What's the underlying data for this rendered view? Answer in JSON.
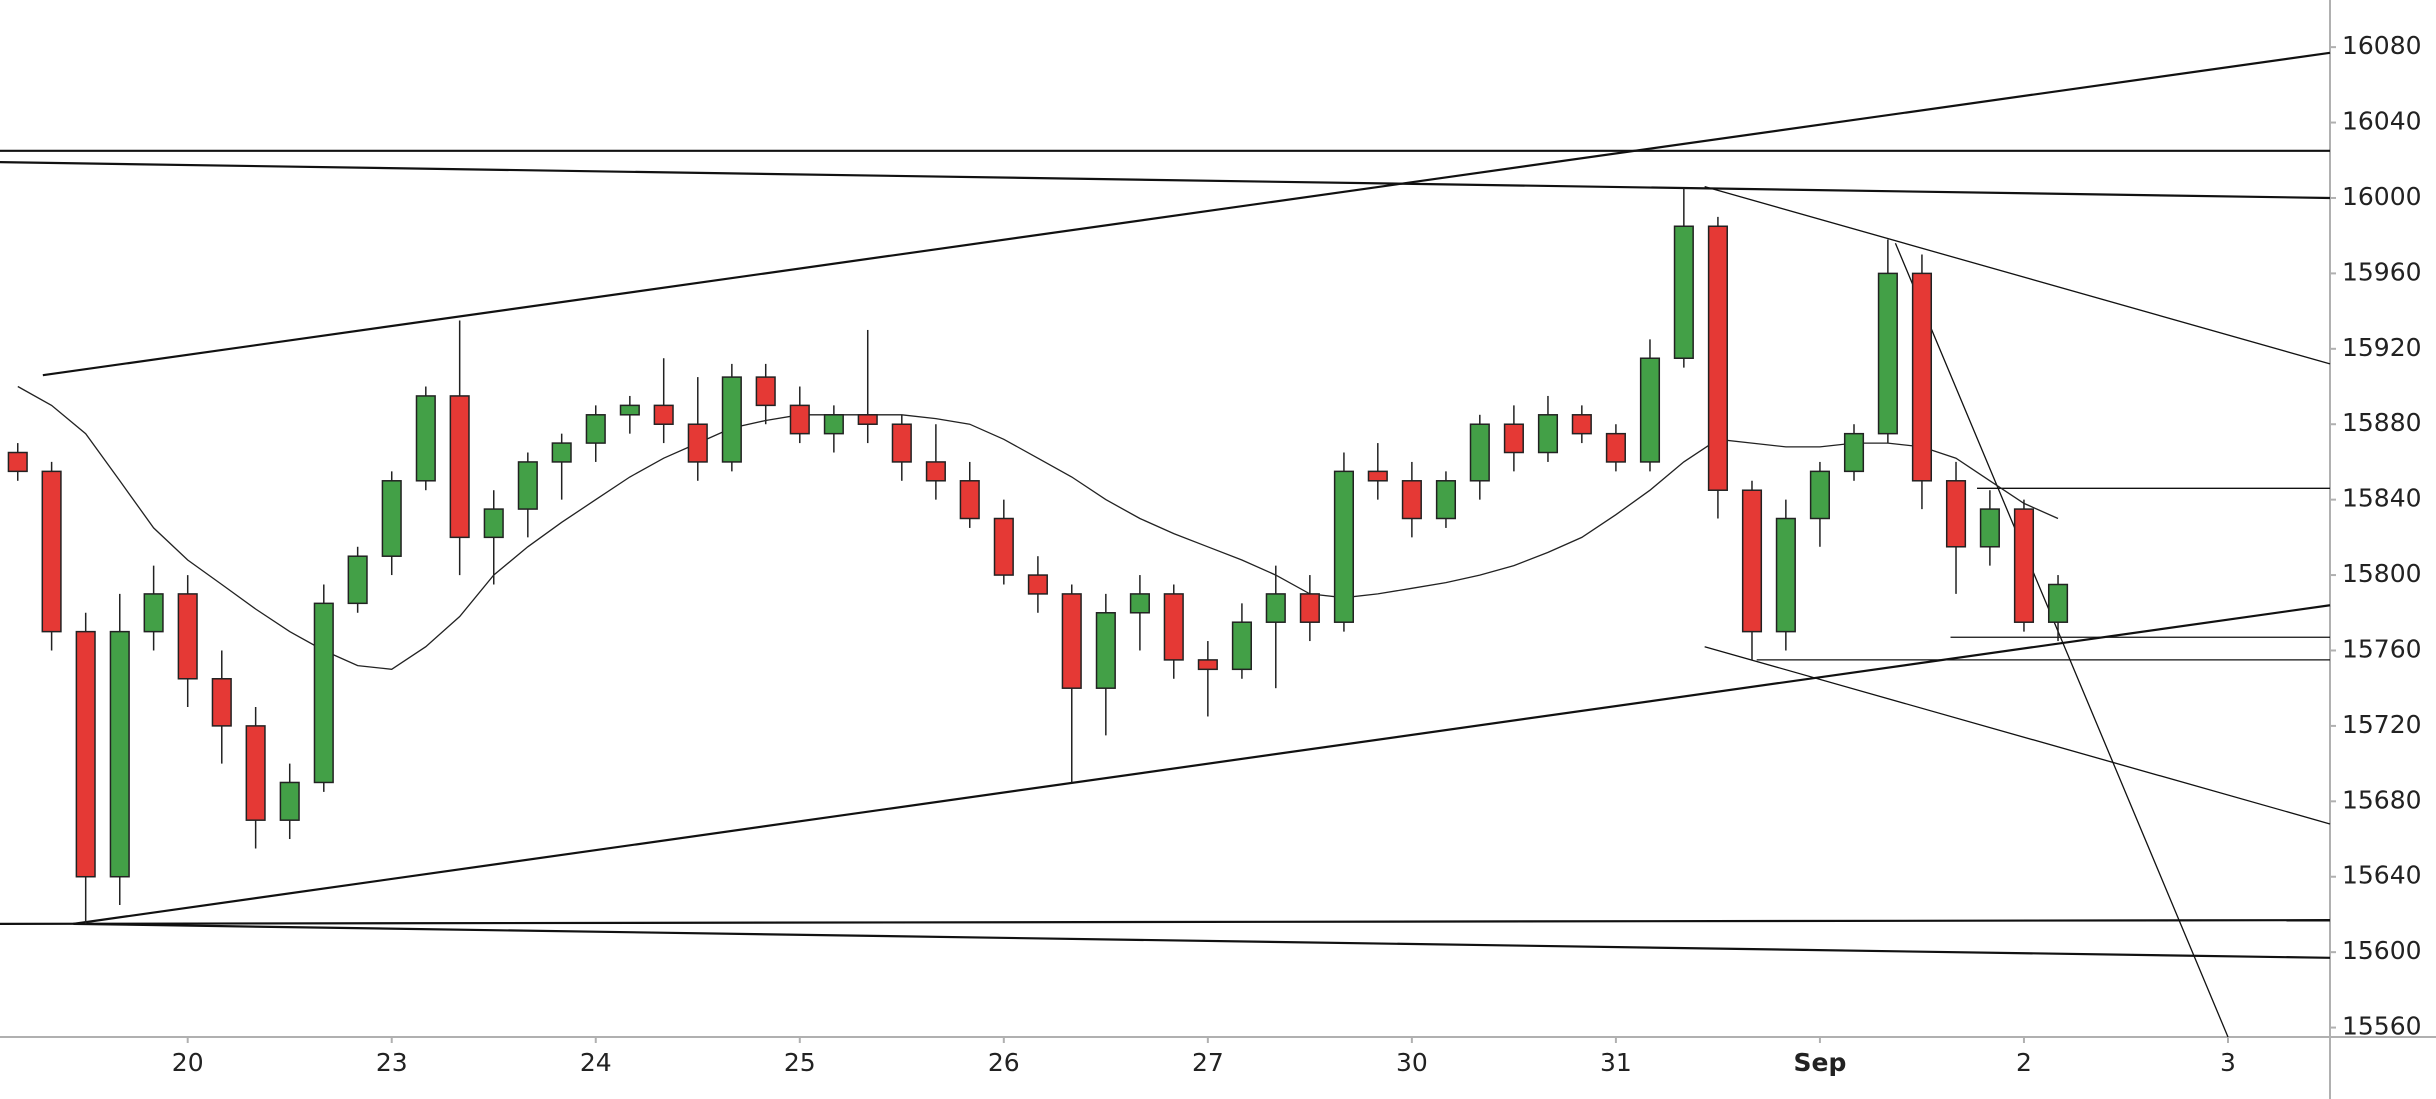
{
  "chart_data": {
    "type": "candlestick",
    "x": [
      0.167,
      0.333,
      0.5,
      0.667,
      0.833,
      1,
      1.167,
      1.333,
      1.5,
      1.667,
      1.833,
      2,
      2.167,
      2.333,
      2.5,
      2.667,
      2.833,
      3,
      3.167,
      3.333,
      3.5,
      3.667,
      3.833,
      4,
      4.167,
      4.333,
      4.5,
      4.667,
      4.833,
      5,
      5.167,
      5.333,
      5.5,
      5.667,
      5.833,
      6,
      6.167,
      6.333,
      6.5,
      6.667,
      6.833,
      7,
      7.167,
      7.333,
      7.5,
      7.667,
      7.833,
      8,
      8.167,
      8.333,
      8.5,
      8.667,
      8.833,
      9,
      9.167,
      9.333,
      9.5,
      9.667,
      9.833,
      10,
      10.167
    ],
    "open": [
      15865,
      15855,
      15770,
      15640,
      15770,
      15790,
      15745,
      15720,
      15670,
      15690,
      15785,
      15810,
      15850,
      15895,
      15820,
      15835,
      15860,
      15870,
      15885,
      15890,
      15880,
      15860,
      15905,
      15890,
      15875,
      15885,
      15880,
      15860,
      15850,
      15830,
      15800,
      15790,
      15740,
      15780,
      15790,
      15755,
      15750,
      15775,
      15790,
      15775,
      15855,
      15850,
      15830,
      15850,
      15880,
      15865,
      15885,
      15875,
      15860,
      15915,
      15985,
      15845,
      15770,
      15830,
      15855,
      15875,
      15960,
      15850,
      15815,
      15835,
      15775
    ],
    "high": [
      15870,
      15860,
      15780,
      15790,
      15805,
      15800,
      15760,
      15730,
      15700,
      15795,
      15815,
      15855,
      15900,
      15935,
      15845,
      15865,
      15875,
      15890,
      15895,
      15915,
      15905,
      15912,
      15912,
      15900,
      15890,
      15930,
      15885,
      15880,
      15860,
      15840,
      15810,
      15795,
      15790,
      15800,
      15795,
      15765,
      15785,
      15805,
      15800,
      15865,
      15870,
      15860,
      15855,
      15885,
      15890,
      15895,
      15890,
      15880,
      15925,
      16005,
      15990,
      15850,
      15840,
      15860,
      15880,
      15978,
      15970,
      15860,
      15845,
      15840,
      15800
    ],
    "low": [
      15850,
      15760,
      15615,
      15625,
      15760,
      15730,
      15700,
      15655,
      15660,
      15685,
      15780,
      15800,
      15845,
      15800,
      15795,
      15820,
      15840,
      15860,
      15875,
      15870,
      15850,
      15855,
      15880,
      15870,
      15865,
      15870,
      15850,
      15840,
      15825,
      15795,
      15780,
      15690,
      15715,
      15760,
      15745,
      15725,
      15745,
      15740,
      15765,
      15770,
      15840,
      15820,
      15825,
      15840,
      15855,
      15860,
      15870,
      15855,
      15855,
      15910,
      15830,
      15755,
      15760,
      15815,
      15850,
      15870,
      15835,
      15790,
      15805,
      15770,
      15765
    ],
    "close": [
      15855,
      15770,
      15640,
      15770,
      15790,
      15745,
      15720,
      15670,
      15690,
      15785,
      15810,
      15850,
      15895,
      15820,
      15835,
      15860,
      15870,
      15885,
      15890,
      15880,
      15860,
      15905,
      15890,
      15875,
      15885,
      15880,
      15860,
      15850,
      15830,
      15800,
      15790,
      15740,
      15780,
      15790,
      15755,
      15750,
      15775,
      15790,
      15775,
      15855,
      15850,
      15830,
      15850,
      15880,
      15865,
      15885,
      15875,
      15860,
      15915,
      15985,
      15845,
      15770,
      15830,
      15855,
      15875,
      15960,
      15850,
      15815,
      15835,
      15775,
      15795
    ],
    "moving_average": [
      15900,
      15890,
      15875,
      15850,
      15825,
      15808,
      15795,
      15782,
      15770,
      15760,
      15752,
      15750,
      15762,
      15778,
      15800,
      15815,
      15828,
      15840,
      15852,
      15862,
      15870,
      15878,
      15882,
      15885,
      15885,
      15885,
      15885,
      15883,
      15880,
      15872,
      15862,
      15852,
      15840,
      15830,
      15822,
      15815,
      15808,
      15800,
      15790,
      15788,
      15790,
      15793,
      15796,
      15800,
      15805,
      15812,
      15820,
      15832,
      15845,
      15860,
      15872,
      15870,
      15868,
      15868,
      15870,
      15870,
      15868,
      15862,
      15850,
      15838,
      15830
    ],
    "up_color": "#43a047",
    "down_color": "#e53935",
    "trendlines": [
      [
        0.08,
        16025,
        11.5,
        16025
      ],
      [
        0.08,
        16019,
        11.5,
        16000
      ],
      [
        0.29,
        15906,
        11.5,
        16077
      ],
      [
        0.44,
        15615,
        11.5,
        15784
      ],
      [
        0.08,
        15615,
        11.5,
        15617
      ],
      [
        0.44,
        15615,
        11.5,
        15597
      ],
      [
        8.435,
        16006,
        11.5,
        15912
      ],
      [
        8.435,
        15762,
        11.5,
        15668
      ],
      [
        9.37,
        15976,
        11.0,
        15555
      ],
      [
        9.77,
        15846,
        11.5,
        15846
      ],
      [
        9.64,
        15767,
        11.5,
        15767
      ],
      [
        8.69,
        15755,
        11.5,
        15755
      ]
    ],
    "xlim": [
      0.08,
      11.5
    ],
    "ylim": [
      15555,
      16105
    ],
    "xticks": [
      {
        "value": 1,
        "label": "20"
      },
      {
        "value": 2,
        "label": "23"
      },
      {
        "value": 3,
        "label": "24"
      },
      {
        "value": 4,
        "label": "25"
      },
      {
        "value": 5,
        "label": "26"
      },
      {
        "value": 6,
        "label": "27"
      },
      {
        "value": 7,
        "label": "30"
      },
      {
        "value": 8,
        "label": "31"
      },
      {
        "value": 9,
        "label": "Sep"
      },
      {
        "value": 10,
        "label": "2"
      },
      {
        "value": 11,
        "label": "3"
      }
    ],
    "yticks": [
      15560,
      15600,
      15640,
      15680,
      15720,
      15760,
      15800,
      15840,
      15880,
      15920,
      15960,
      16000,
      16040,
      16080
    ]
  }
}
